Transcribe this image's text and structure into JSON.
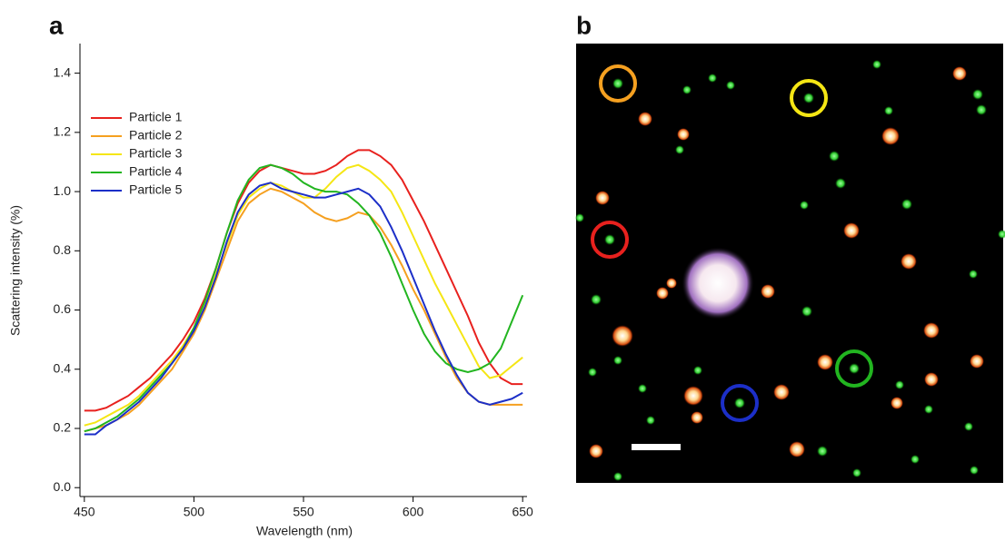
{
  "panel_labels": [
    "a",
    "b"
  ],
  "chart_data": {
    "type": "line",
    "xlabel": "Wavelength (nm)",
    "ylabel": "Scattering intensity (%)",
    "x": [
      450,
      455,
      460,
      465,
      470,
      475,
      480,
      485,
      490,
      495,
      500,
      505,
      510,
      515,
      520,
      525,
      530,
      535,
      540,
      545,
      550,
      555,
      560,
      565,
      570,
      575,
      580,
      585,
      590,
      595,
      600,
      605,
      610,
      615,
      620,
      625,
      630,
      635,
      640,
      645,
      650
    ],
    "series": [
      {
        "name": "Particle 1",
        "color": "#e8211e",
        "values": [
          0.26,
          0.26,
          0.27,
          0.29,
          0.31,
          0.34,
          0.37,
          0.41,
          0.45,
          0.5,
          0.56,
          0.64,
          0.74,
          0.86,
          0.96,
          1.03,
          1.07,
          1.09,
          1.08,
          1.07,
          1.06,
          1.06,
          1.07,
          1.09,
          1.12,
          1.14,
          1.14,
          1.12,
          1.09,
          1.04,
          0.97,
          0.9,
          0.82,
          0.74,
          0.66,
          0.58,
          0.49,
          0.42,
          0.37,
          0.35,
          0.35
        ]
      },
      {
        "name": "Particle 2",
        "color": "#f5a020",
        "values": [
          0.19,
          0.2,
          0.21,
          0.23,
          0.25,
          0.28,
          0.32,
          0.36,
          0.4,
          0.46,
          0.52,
          0.6,
          0.7,
          0.8,
          0.9,
          0.96,
          0.99,
          1.01,
          1.0,
          0.98,
          0.96,
          0.93,
          0.91,
          0.9,
          0.91,
          0.93,
          0.92,
          0.88,
          0.82,
          0.75,
          0.67,
          0.6,
          0.52,
          0.44,
          0.37,
          0.32,
          0.29,
          0.28,
          0.28,
          0.28,
          0.28
        ]
      },
      {
        "name": "Particle 3",
        "color": "#f5e614",
        "values": [
          0.21,
          0.22,
          0.24,
          0.26,
          0.28,
          0.31,
          0.35,
          0.39,
          0.43,
          0.48,
          0.54,
          0.62,
          0.72,
          0.82,
          0.92,
          0.98,
          1.01,
          1.03,
          1.02,
          1.0,
          0.98,
          0.98,
          1.01,
          1.05,
          1.08,
          1.09,
          1.07,
          1.04,
          1.0,
          0.93,
          0.85,
          0.77,
          0.69,
          0.62,
          0.55,
          0.48,
          0.41,
          0.37,
          0.38,
          0.41,
          0.44
        ]
      },
      {
        "name": "Particle 4",
        "color": "#22b520",
        "values": [
          0.19,
          0.2,
          0.22,
          0.24,
          0.27,
          0.3,
          0.34,
          0.38,
          0.42,
          0.47,
          0.54,
          0.63,
          0.74,
          0.86,
          0.97,
          1.04,
          1.08,
          1.09,
          1.08,
          1.06,
          1.03,
          1.01,
          1.0,
          1.0,
          0.99,
          0.96,
          0.92,
          0.86,
          0.78,
          0.69,
          0.6,
          0.52,
          0.46,
          0.42,
          0.4,
          0.39,
          0.4,
          0.42,
          0.47,
          0.56,
          0.65
        ]
      },
      {
        "name": "Particle 5",
        "color": "#1c2fc8",
        "values": [
          0.18,
          0.18,
          0.21,
          0.23,
          0.26,
          0.29,
          0.33,
          0.37,
          0.42,
          0.47,
          0.53,
          0.61,
          0.71,
          0.83,
          0.93,
          0.99,
          1.02,
          1.03,
          1.01,
          1.0,
          0.99,
          0.98,
          0.98,
          0.99,
          1.0,
          1.01,
          0.99,
          0.95,
          0.88,
          0.8,
          0.71,
          0.62,
          0.53,
          0.45,
          0.38,
          0.32,
          0.29,
          0.28,
          0.29,
          0.3,
          0.32
        ]
      }
    ],
    "xlim": [
      448,
      652
    ],
    "ylim": [
      -0.03,
      1.5
    ],
    "xticks": [
      450,
      500,
      550,
      600,
      650
    ],
    "yticks": [
      {
        "value": 0,
        "label": "0.0"
      },
      0.2,
      0.4,
      0.6,
      0.8,
      {
        "value": 1,
        "label": "1.0"
      },
      1.2,
      1.4
    ],
    "legend": "upper left"
  }
}
